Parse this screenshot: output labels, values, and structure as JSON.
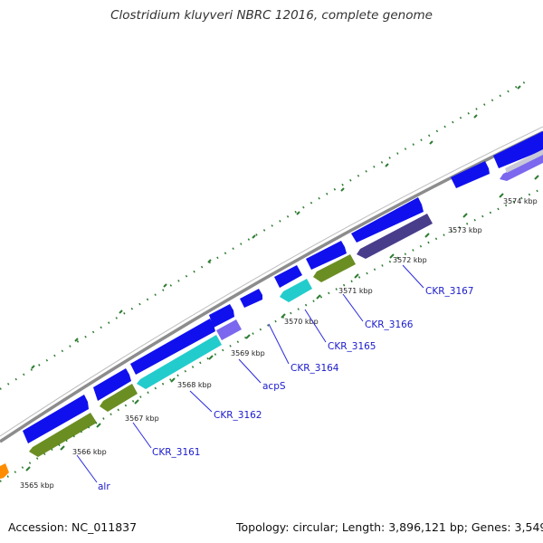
{
  "title": "Clostridium kluyveri NBRC 12016, complete genome",
  "footer": {
    "accession": "Accession: NC_011837",
    "summary": "Topology: circular; Length: 3,896,121 bp; Genes: 3,549"
  },
  "colors": {
    "backbone": "#8c8c8c",
    "tick": "#2e7d32",
    "cds_forward": "#1010ee",
    "olive": "#6b8e23",
    "cyan": "#22cccc",
    "lavender": "#7b68ee",
    "dark_purple": "#483d8b",
    "orange": "#ff8c00",
    "label": "#1a1acc"
  },
  "kbp_labels": [
    "3565 kbp",
    "3566 kbp",
    "3567 kbp",
    "3568 kbp",
    "3569 kbp",
    "3570 kbp",
    "3571 kbp",
    "3572 kbp",
    "3573 kbp",
    "3574 kbp"
  ],
  "gene_labels": [
    "alr",
    "CKR_3161",
    "CKR_3162",
    "acpS",
    "CKR_3164",
    "CKR_3165",
    "CKR_3166",
    "CKR_3167"
  ]
}
